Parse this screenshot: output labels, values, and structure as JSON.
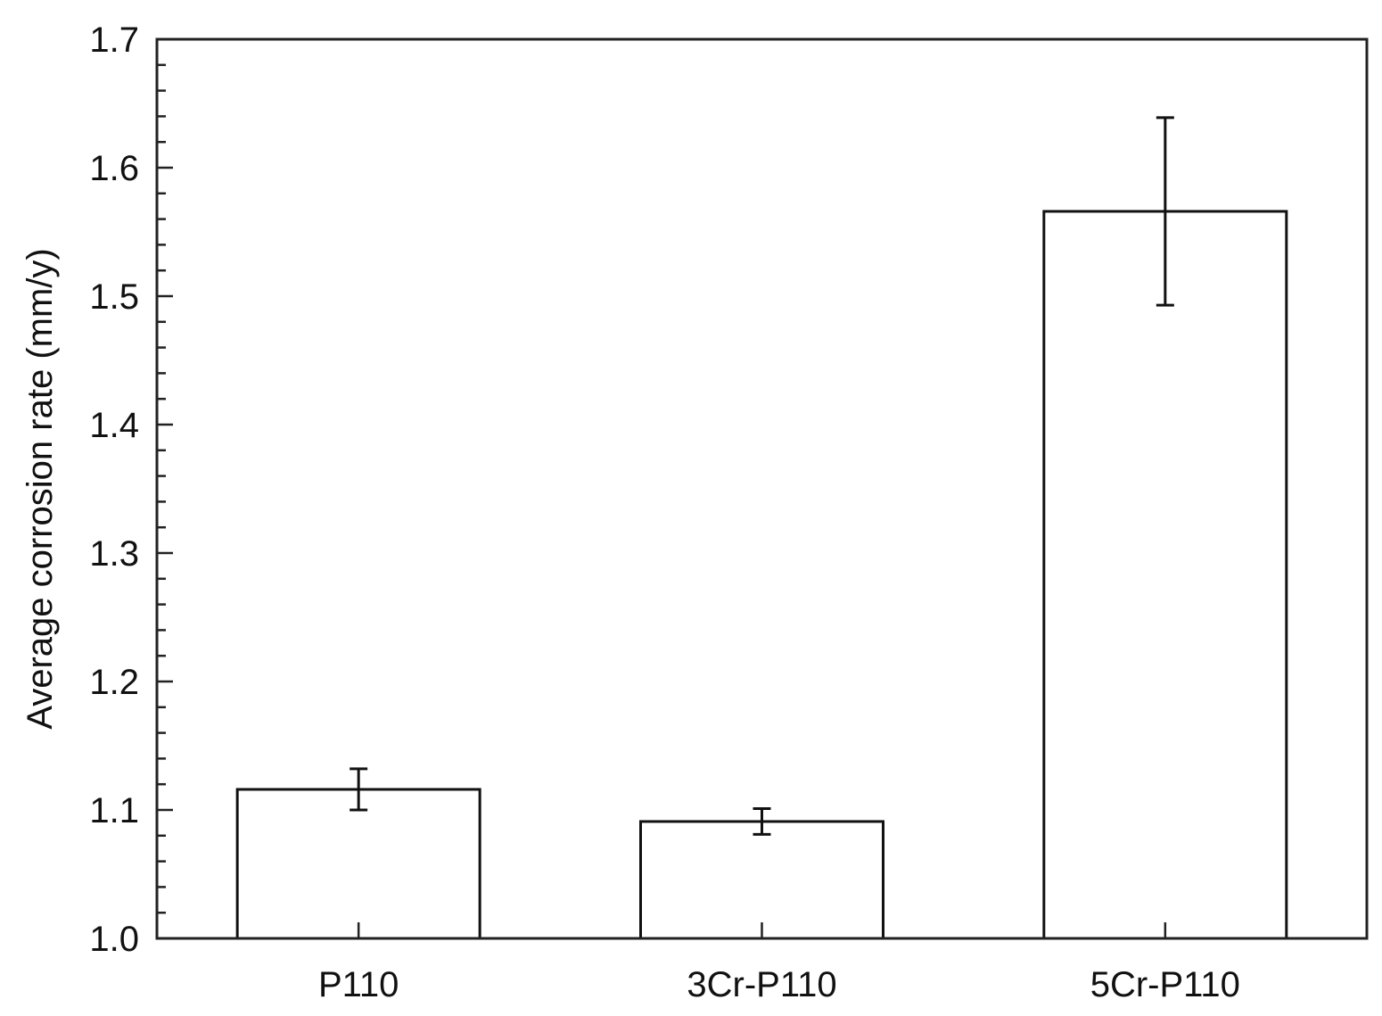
{
  "chart_data": {
    "type": "bar",
    "title": "",
    "xlabel": "",
    "ylabel": "Average corrosion rate (mm/y)",
    "categories": [
      "P110",
      "3Cr-P110",
      "5Cr-P110"
    ],
    "values": [
      1.116,
      1.091,
      1.566
    ],
    "errors": [
      0.016,
      0.01,
      0.073
    ],
    "ylim": [
      1.0,
      1.7
    ],
    "yticks": [
      1.0,
      1.1,
      1.2,
      1.3,
      1.4,
      1.5,
      1.6,
      1.7
    ],
    "ytick_labels": [
      "1.0",
      "1.1",
      "1.2",
      "1.3",
      "1.4",
      "1.5",
      "1.6",
      "1.7"
    ],
    "grid": false,
    "legend": "none",
    "bar_fill": "#ffffff",
    "bar_stroke": "#111111"
  }
}
